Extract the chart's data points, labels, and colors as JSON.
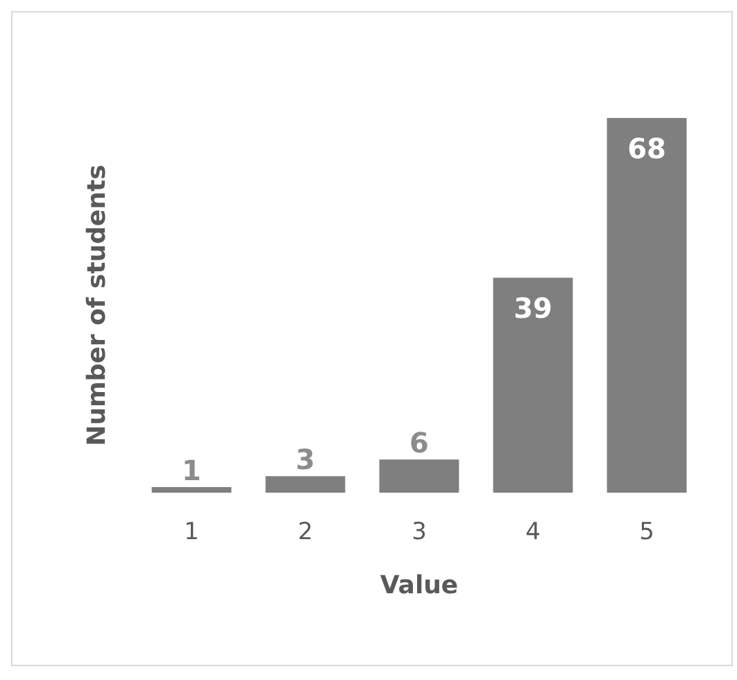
{
  "chart_data": {
    "type": "bar",
    "ylabel": "Number of students",
    "xlabel": "Value",
    "categories": [
      "1",
      "2",
      "3",
      "4",
      "5"
    ],
    "values": [
      1,
      3,
      6,
      39,
      68
    ],
    "color": "#7f7f7f",
    "data_labels": true,
    "grid": false
  }
}
